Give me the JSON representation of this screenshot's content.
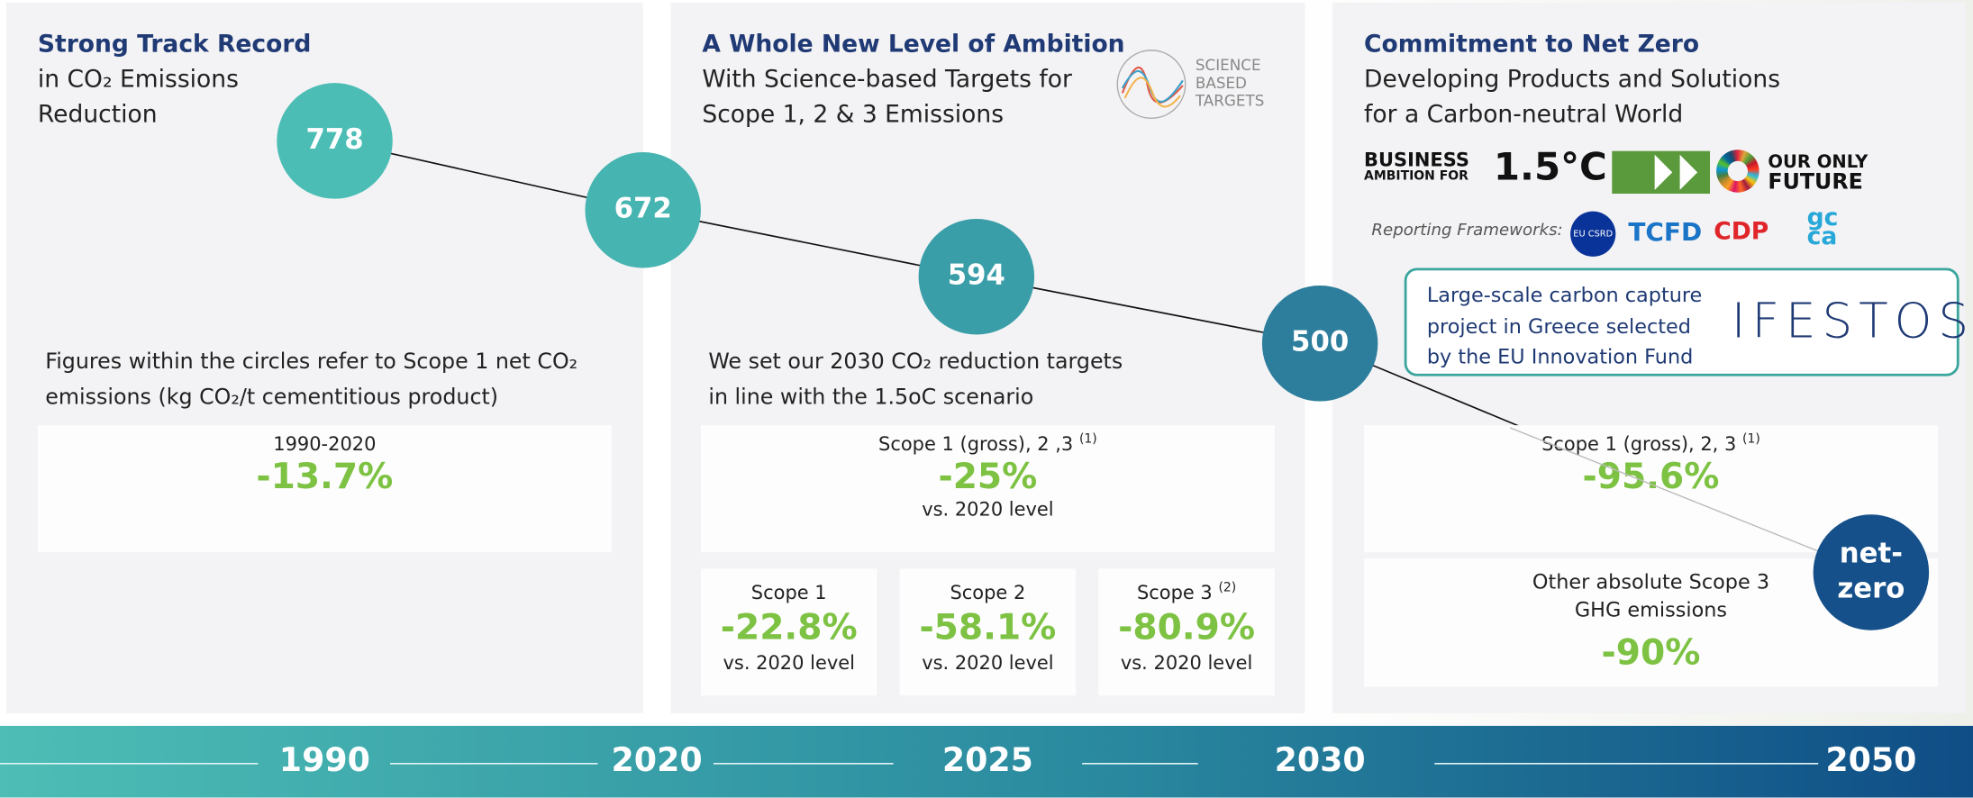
{
  "panels": [
    {
      "title": "Strong Track Record",
      "subtitle": [
        "in CO₂ Emissions",
        "Reduction"
      ],
      "note": "Figures within the circles refer to Scope 1 net CO₂ emissions (kg CO₂/t cementitious product)",
      "box": {
        "label": "1990-2020",
        "value": "-13.7%"
      }
    },
    {
      "title": "A Whole New Level of Ambition",
      "subtitle": [
        "With Science-based Targets for",
        "Scope 1, 2 & 3 Emissions"
      ],
      "logo": [
        "SCIENCE",
        "BASED",
        "TARGETS"
      ],
      "note": "We set our 2030 CO₂ reduction targets in line with the 1.5oC scenario",
      "box": {
        "label": "Scope 1 (gross), 2 ,3",
        "sup": "(1)",
        "value": "-25%",
        "sub": "vs. 2020 level"
      },
      "small_boxes": [
        {
          "label": "Scope 1",
          "value": "-22.8%",
          "sub": "vs. 2020 level"
        },
        {
          "label": "Scope 2",
          "value": "-58.1%",
          "sub": "vs. 2020 level"
        },
        {
          "label": "Scope 3",
          "sup": "(2)",
          "value": "-80.9%",
          "sub": "vs. 2020 level"
        }
      ]
    },
    {
      "title": "Commitment to Net Zero",
      "subtitle": [
        "Developing Products and Solutions",
        "for a Carbon-neutral World"
      ],
      "badges": {
        "business": [
          "BUSINESS",
          "AMBITION FOR"
        ],
        "degree": "1.5°C",
        "future": [
          "OUR ONLY",
          "FUTURE"
        ]
      },
      "frameworks_label": "Reporting Frameworks:",
      "frameworks": [
        "EU CSRD",
        "TCFD",
        "CDP",
        "gcca"
      ],
      "callout": {
        "text": "Large-scale carbon capture project in Greece selected by the EU Innovation Fund",
        "logo": "IFESTOS"
      },
      "box": {
        "label": "Scope 1 (gross), 2, 3",
        "sup": "(1)",
        "value": "-95.6%"
      },
      "box2": {
        "label": "Other absolute Scope 3 GHG emissions",
        "value": "-90%"
      }
    }
  ],
  "circles": [
    "778",
    "672",
    "594",
    "500",
    "net-zero"
  ],
  "timeline": [
    "1990",
    "2020",
    "2025",
    "2030",
    "2050"
  ]
}
